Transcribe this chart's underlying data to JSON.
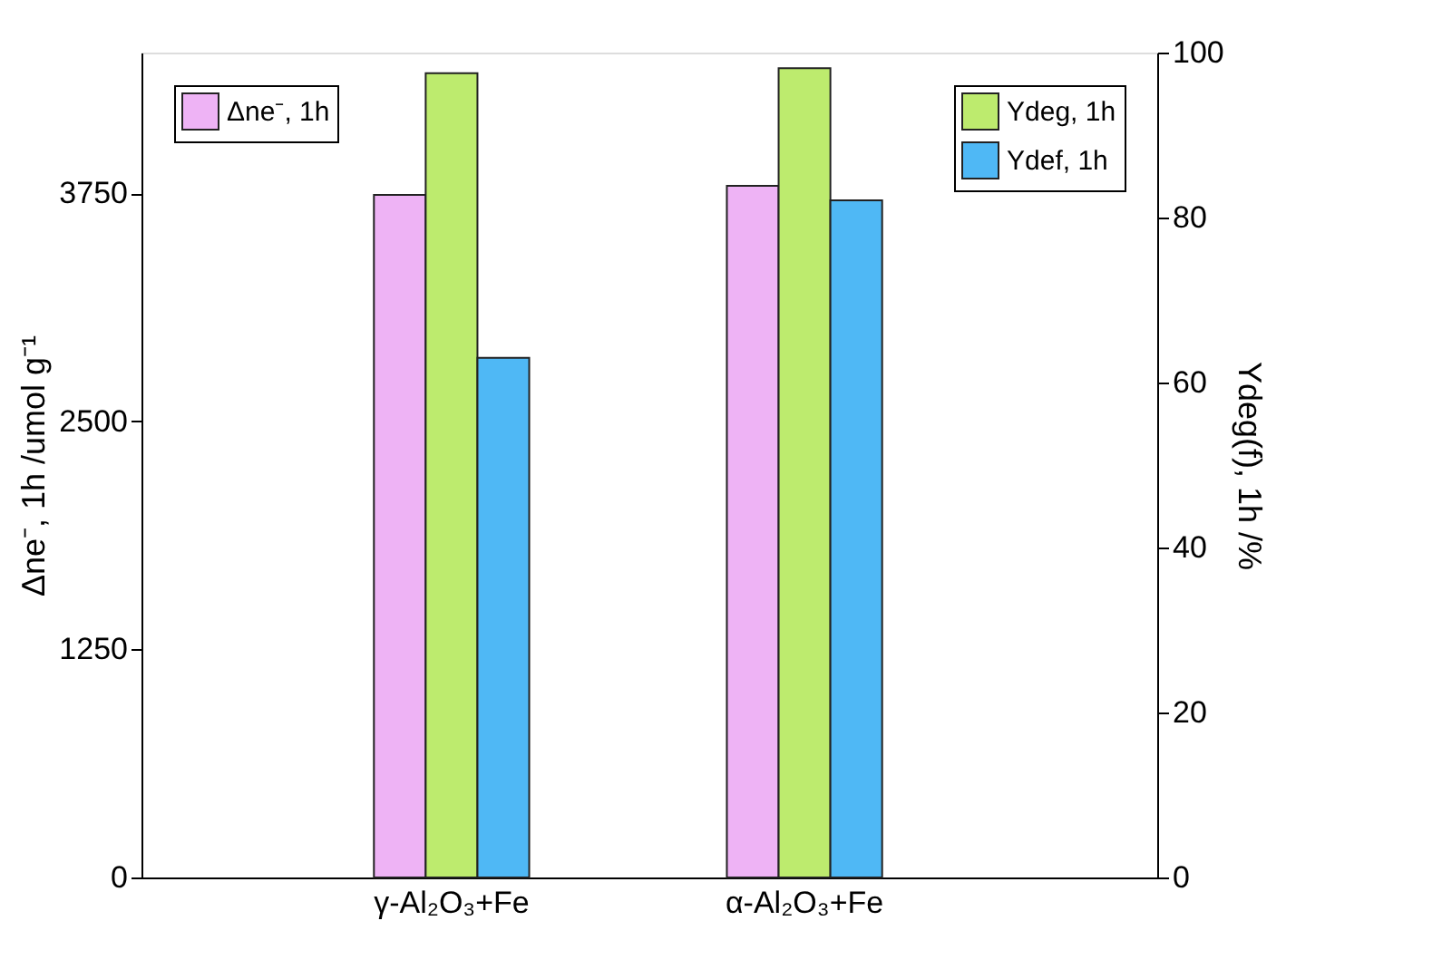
{
  "chart_data": {
    "type": "bar",
    "categories": [
      "γ-Al₂O₃+Fe",
      "α-Al₂O₃+Fe"
    ],
    "series": [
      {
        "name": "Δne⁻, 1h",
        "color": "#eeb3f5",
        "values": [
          3740,
          3790
        ]
      },
      {
        "name": "Ydeg, 1h",
        "color": "#bdeb6e",
        "values": [
          97.5,
          98.1
        ],
        "axis": "y2"
      },
      {
        "name": "Ydef, 1h",
        "color": "#4fb8f5",
        "values": [
          63.0,
          82.1
        ],
        "axis": "y2"
      }
    ],
    "ylabel": "Δne⁻, 1h /umol g⁻¹",
    "y2label": "Ydeg(f), 1h /%",
    "ylim": [
      0,
      4520
    ],
    "yticks": [
      0,
      1250,
      2500,
      3750
    ],
    "y2lim": [
      0,
      100
    ],
    "y2ticks": [
      0,
      20,
      40,
      60,
      80,
      100
    ],
    "grid": false,
    "legend": "top"
  }
}
